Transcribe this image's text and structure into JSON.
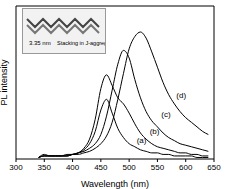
{
  "chart_data": {
    "type": "line",
    "xlabel": "Wavelength (nm)",
    "ylabel": "PL intensity",
    "xlim": [
      300,
      650
    ],
    "xticks": [
      300,
      350,
      400,
      450,
      500,
      550,
      600,
      650
    ],
    "ylim": [
      0,
      1
    ],
    "tick_labels": "x",
    "grid": false,
    "x": [
      340,
      350,
      360,
      370,
      380,
      390,
      400,
      410,
      420,
      430,
      440,
      450,
      460,
      470,
      480,
      490,
      500,
      510,
      520,
      530,
      540,
      550,
      560,
      570,
      580,
      590,
      600,
      610,
      620,
      630,
      640
    ],
    "series": [
      {
        "name": "(a)",
        "color": "#000000",
        "values": [
          0.01,
          0.02,
          0.02,
          0.02,
          0.02,
          0.02,
          0.03,
          0.04,
          0.06,
          0.1,
          0.18,
          0.32,
          0.39,
          0.3,
          0.2,
          0.14,
          0.1,
          0.08,
          0.06,
          0.05,
          0.04,
          0.04,
          0.03,
          0.03,
          0.02,
          0.02,
          0.02,
          0.02,
          0.01,
          0.01,
          0.01
        ]
      },
      {
        "name": "(b)",
        "color": "#000000",
        "values": [
          0.01,
          0.03,
          0.02,
          0.02,
          0.02,
          0.03,
          0.03,
          0.04,
          0.07,
          0.13,
          0.26,
          0.46,
          0.55,
          0.48,
          0.4,
          0.36,
          0.3,
          0.23,
          0.17,
          0.13,
          0.1,
          0.08,
          0.07,
          0.06,
          0.05,
          0.04,
          0.04,
          0.03,
          0.03,
          0.02,
          0.02
        ]
      },
      {
        "name": "(c)",
        "color": "#000000",
        "values": [
          0.01,
          0.02,
          0.02,
          0.02,
          0.02,
          0.02,
          0.03,
          0.04,
          0.05,
          0.07,
          0.1,
          0.16,
          0.28,
          0.45,
          0.62,
          0.71,
          0.66,
          0.52,
          0.4,
          0.31,
          0.25,
          0.21,
          0.17,
          0.14,
          0.12,
          0.1,
          0.09,
          0.08,
          0.07,
          0.06,
          0.05
        ]
      },
      {
        "name": "(d)",
        "color": "#000000",
        "values": [
          0.01,
          0.02,
          0.02,
          0.02,
          0.02,
          0.02,
          0.03,
          0.03,
          0.04,
          0.05,
          0.07,
          0.1,
          0.15,
          0.24,
          0.39,
          0.56,
          0.72,
          0.8,
          0.83,
          0.79,
          0.7,
          0.6,
          0.5,
          0.42,
          0.36,
          0.31,
          0.27,
          0.24,
          0.21,
          0.18,
          0.16
        ]
      }
    ],
    "annotations": [
      {
        "text": "(a)",
        "x": 522,
        "y": 0.12
      },
      {
        "text": "(b)",
        "x": 545,
        "y": 0.18
      },
      {
        "text": "(c)",
        "x": 565,
        "y": 0.29
      },
      {
        "text": "(d)",
        "x": 592,
        "y": 0.42
      }
    ],
    "inset": {
      "texts": [
        "3.35 nm",
        "Stacking in J-aggregates"
      ]
    }
  }
}
